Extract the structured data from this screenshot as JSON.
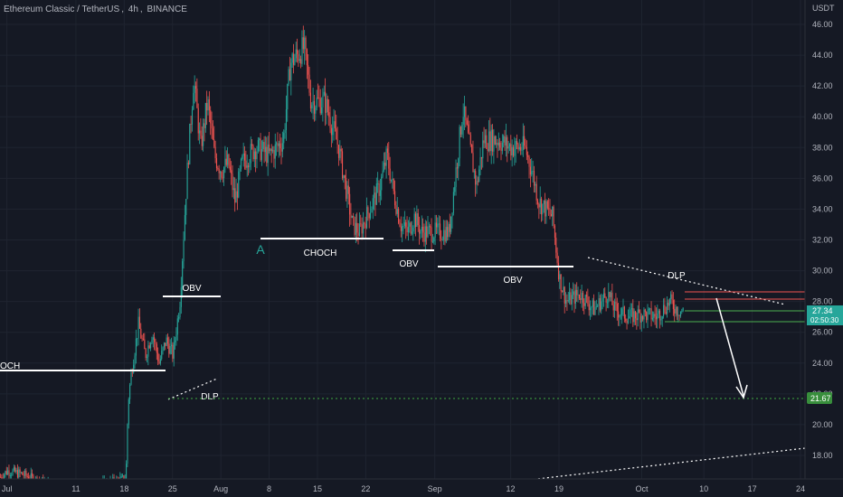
{
  "header": {
    "symbol_name": "Ethereum Classic / TetherUS",
    "interval": "4h",
    "exchange": "BINANCE",
    "currency": "USDT"
  },
  "colors": {
    "background": "#151924",
    "grid": "#1f2430",
    "axis_text": "#b2b5be",
    "up_candle": "#26a69a",
    "down_candle": "#ef5350",
    "annotation_line": "#ffffff",
    "price_badge": "#26a69a",
    "target_badge": "#388e3c",
    "label_A": "#26a69a",
    "zone_red": "#ef5350",
    "zone_green": "#4caf50"
  },
  "chart_data": {
    "type": "candlestick",
    "title": "Ethereum Classic / TetherUS, 4h, BINANCE",
    "ylabel": "USDT",
    "ylim": [
      16.9,
      48.2
    ],
    "y_ticks": [
      "18.00",
      "20.00",
      "22.00",
      "24.00",
      "26.00",
      "28.00",
      "30.00",
      "32.00",
      "34.00",
      "36.00",
      "38.00",
      "40.00",
      "42.00",
      "44.00",
      "46.00"
    ],
    "x_ticks": [
      "Jul",
      "11",
      "18",
      "25",
      "Aug",
      "8",
      "15",
      "22",
      "Sep",
      "12",
      "19",
      "Oct",
      "10",
      "17",
      "24"
    ],
    "grid": true,
    "close_path": [
      [
        "Jun 30",
        16.6
      ],
      [
        "Jul 1",
        17.0
      ],
      [
        "Jul 3",
        16.8
      ],
      [
        "Jul 10",
        15.5
      ],
      [
        "Jul 18 04:00",
        16.5
      ],
      [
        "Jul 18 12:00",
        21.5
      ],
      [
        "Jul 19",
        23.5
      ],
      [
        "Jul 20",
        26.5
      ],
      [
        "Jul 21",
        24.5
      ],
      [
        "Jul 22",
        26.0
      ],
      [
        "Jul 23",
        24.0
      ],
      [
        "Jul 24",
        25.5
      ],
      [
        "Jul 25",
        24.5
      ],
      [
        "Jul 26",
        28.0
      ],
      [
        "Jul 27",
        36.0
      ],
      [
        "Jul 28",
        42.5
      ],
      [
        "Jul 29",
        38.0
      ],
      [
        "Jul 30",
        41.0
      ],
      [
        "Jul 31",
        37.5
      ],
      [
        "Aug 1",
        36.5
      ],
      [
        "Aug 2",
        37.0
      ],
      [
        "Aug 3",
        34.5
      ],
      [
        "Aug 4",
        37.0
      ],
      [
        "Aug 6",
        38.0
      ],
      [
        "Aug 8",
        37.5
      ],
      [
        "Aug 10",
        38.5
      ],
      [
        "Aug 11",
        43.5
      ],
      [
        "Aug 13",
        44.5
      ],
      [
        "Aug 14",
        41.0
      ],
      [
        "Aug 16",
        41.0
      ],
      [
        "Aug 18",
        38.0
      ],
      [
        "Aug 19",
        35.5
      ],
      [
        "Aug 20",
        33.0
      ],
      [
        "Aug 21",
        32.5
      ],
      [
        "Aug 22",
        33.5
      ],
      [
        "Aug 24",
        35.5
      ],
      [
        "Aug 25",
        37.5
      ],
      [
        "Aug 26",
        35.0
      ],
      [
        "Aug 27",
        33.0
      ],
      [
        "Aug 28",
        32.5
      ],
      [
        "Aug 29",
        33.5
      ],
      [
        "Aug 30",
        32.5
      ],
      [
        "Sep 1",
        32.5
      ],
      [
        "Sep 3",
        32.5
      ],
      [
        "Sep 5",
        40.5
      ],
      [
        "Sep 6",
        38.0
      ],
      [
        "Sep 7",
        35.5
      ],
      [
        "Sep 8",
        38.5
      ],
      [
        "Sep 10",
        38.5
      ],
      [
        "Sep 12",
        38.0
      ],
      [
        "Sep 14",
        38.0
      ],
      [
        "Sep 15",
        36.5
      ],
      [
        "Sep 16",
        34.5
      ],
      [
        "Sep 18",
        33.5
      ],
      [
        "Sep 19",
        29.5
      ],
      [
        "Sep 20",
        28.0
      ],
      [
        "Sep 22",
        28.5
      ],
      [
        "Sep 24",
        27.5
      ],
      [
        "Sep 26",
        28.5
      ],
      [
        "Sep 27",
        27.5
      ],
      [
        "Sep 29",
        27.0
      ],
      [
        "Oct 1",
        27.2
      ],
      [
        "Oct 3",
        27.0
      ],
      [
        "Oct 5",
        28.0
      ],
      [
        "Oct 6",
        27.5
      ],
      [
        "Oct 7",
        27.34
      ]
    ],
    "current_price": "27.34",
    "countdown": "02:50:30",
    "target_price": "21.67",
    "annotations": {
      "choch_left": "OCH",
      "obv_1": "OBV",
      "dlp_1": "DLP",
      "point_A": "A",
      "choch_main": "CHOCH",
      "obv_2": "OBV",
      "obv_3": "OBV",
      "dlp_2": "DLP"
    }
  }
}
